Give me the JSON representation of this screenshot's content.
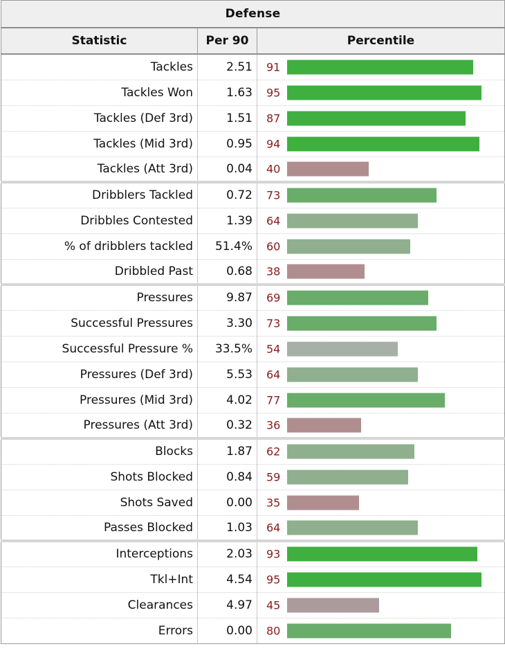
{
  "table_title": "Defense",
  "headers": {
    "statistic": "Statistic",
    "per90": "Per 90",
    "percentile": "Percentile"
  },
  "colors": {
    "high": "#3faf3f",
    "mid_high": "#6aac6a",
    "mid": "#8faf8f",
    "neutral": "#a6b0a6",
    "low": "#b08e90",
    "low2": "#ac9b9d",
    "percentile_text": "#8b1a1a"
  },
  "chart_data": {
    "type": "table",
    "title": "Defense",
    "columns": [
      "Statistic",
      "Per 90",
      "Percentile"
    ],
    "groups": [
      [
        {
          "stat": "Tackles",
          "per90": "2.51",
          "percentile": 91
        },
        {
          "stat": "Tackles Won",
          "per90": "1.63",
          "percentile": 95
        },
        {
          "stat": "Tackles (Def 3rd)",
          "per90": "1.51",
          "percentile": 87
        },
        {
          "stat": "Tackles (Mid 3rd)",
          "per90": "0.95",
          "percentile": 94
        },
        {
          "stat": "Tackles (Att 3rd)",
          "per90": "0.04",
          "percentile": 40
        }
      ],
      [
        {
          "stat": "Dribblers Tackled",
          "per90": "0.72",
          "percentile": 73
        },
        {
          "stat": "Dribbles Contested",
          "per90": "1.39",
          "percentile": 64
        },
        {
          "stat": "% of dribblers tackled",
          "per90": "51.4%",
          "percentile": 60
        },
        {
          "stat": "Dribbled Past",
          "per90": "0.68",
          "percentile": 38
        }
      ],
      [
        {
          "stat": "Pressures",
          "per90": "9.87",
          "percentile": 69
        },
        {
          "stat": "Successful Pressures",
          "per90": "3.30",
          "percentile": 73
        },
        {
          "stat": "Successful Pressure %",
          "per90": "33.5%",
          "percentile": 54
        },
        {
          "stat": "Pressures (Def 3rd)",
          "per90": "5.53",
          "percentile": 64
        },
        {
          "stat": "Pressures (Mid 3rd)",
          "per90": "4.02",
          "percentile": 77
        },
        {
          "stat": "Pressures (Att 3rd)",
          "per90": "0.32",
          "percentile": 36
        }
      ],
      [
        {
          "stat": "Blocks",
          "per90": "1.87",
          "percentile": 62
        },
        {
          "stat": "Shots Blocked",
          "per90": "0.84",
          "percentile": 59
        },
        {
          "stat": "Shots Saved",
          "per90": "0.00",
          "percentile": 35
        },
        {
          "stat": "Passes Blocked",
          "per90": "1.03",
          "percentile": 64
        }
      ],
      [
        {
          "stat": "Interceptions",
          "per90": "2.03",
          "percentile": 93
        },
        {
          "stat": "Tkl+Int",
          "per90": "4.54",
          "percentile": 95
        },
        {
          "stat": "Clearances",
          "per90": "4.97",
          "percentile": 45
        },
        {
          "stat": "Errors",
          "per90": "0.00",
          "percentile": 80
        }
      ]
    ]
  }
}
